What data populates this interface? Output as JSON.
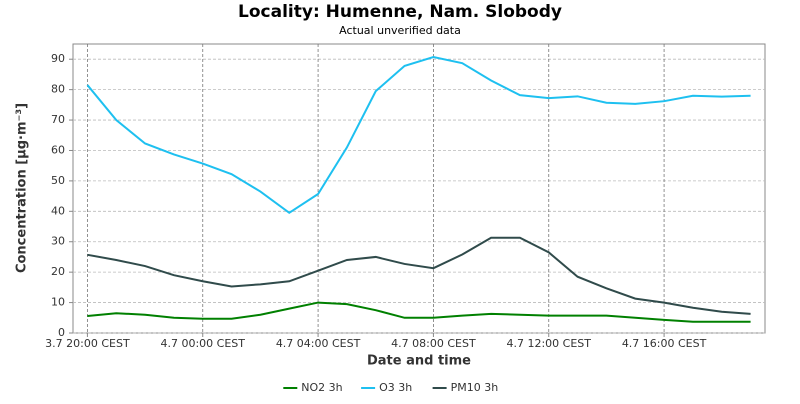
{
  "chart_data": {
    "type": "line",
    "title": "Locality: Humenne, Nam. Slobody",
    "subtitle": "Actual unverified data",
    "xlabel": "Date and time",
    "ylabel": "Concentration [µg·m⁻³]",
    "categories": [
      "3.7 20:00 CEST",
      null,
      null,
      null,
      "4.7 00:00 CEST",
      null,
      null,
      null,
      "4.7 04:00 CEST",
      null,
      null,
      null,
      "4.7 08:00 CEST",
      null,
      null,
      null,
      "4.7 12:00 CEST",
      null,
      null,
      null,
      "4.7 16:00 CEST",
      null,
      null,
      null
    ],
    "series": [
      {
        "name": "NO2 3h",
        "color": "#008000",
        "values": [
          5.6,
          6.5,
          6,
          5,
          4.7,
          4.7,
          6,
          8,
          10,
          9.5,
          7.5,
          5,
          5,
          5.7,
          6.3,
          6,
          5.7,
          5.7,
          5.7,
          5,
          4.3,
          3.7,
          3.7,
          3.7
        ]
      },
      {
        "name": "O3 3h",
        "color": "#1ec0f0",
        "values": [
          81.5,
          70,
          62.3,
          58.7,
          55.7,
          52.2,
          46.5,
          39.5,
          45.7,
          61,
          79.5,
          87.8,
          90.7,
          88.7,
          83,
          78.2,
          77.2,
          77.8,
          75.7,
          75.3,
          76.2,
          78,
          77.7,
          78
        ]
      },
      {
        "name": "PM10 3h",
        "color": "#304b4b",
        "values": [
          25.7,
          24,
          22,
          19,
          17,
          15.3,
          16,
          17,
          20.5,
          24,
          25,
          22.7,
          21.3,
          25.8,
          31.3,
          31.3,
          26.5,
          18.5,
          14.7,
          11.3,
          10,
          8.3,
          7,
          6.3
        ]
      }
    ],
    "ylim": [
      0,
      95
    ],
    "yticks": [
      0,
      10,
      20,
      30,
      40,
      50,
      60,
      70,
      80,
      90
    ],
    "grid": true,
    "legend": "bottom"
  }
}
